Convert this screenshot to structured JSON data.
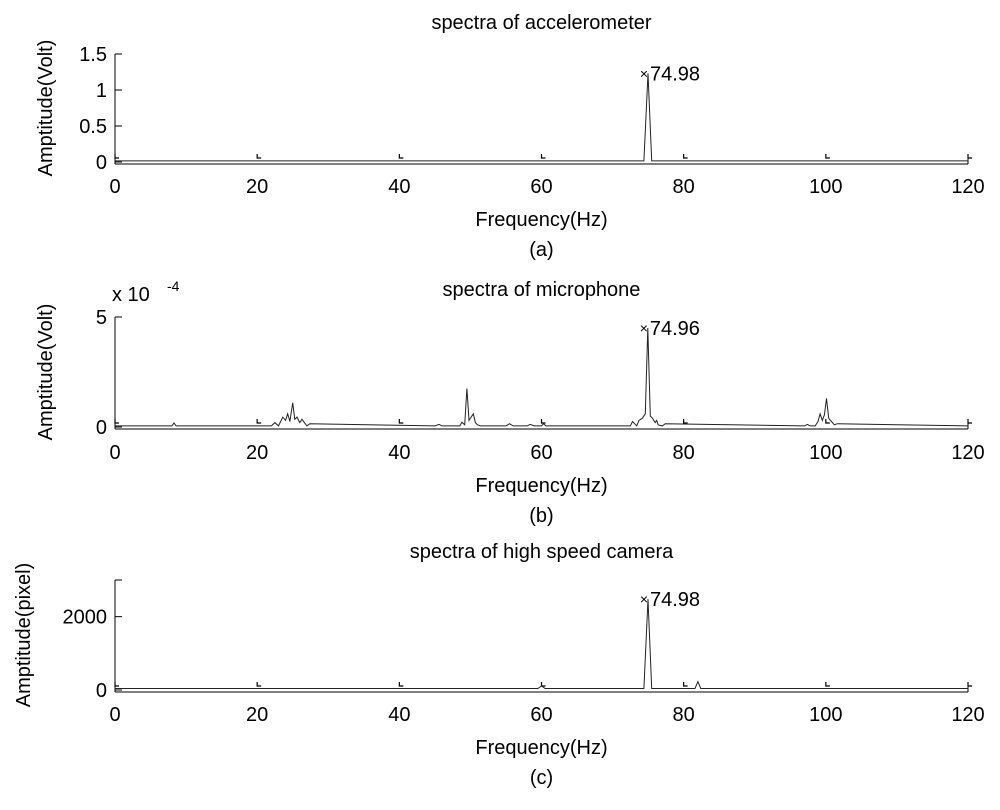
{
  "chart_data": [
    {
      "type": "line",
      "title": "spectra of accelerometer",
      "xlabel": "Frequency(Hz)",
      "ylabel": "Amptitude(Volt)",
      "caption": "(a)",
      "xlim": [
        0,
        120
      ],
      "ylim": [
        0,
        1.5
      ],
      "xticks": [
        0,
        20,
        40,
        60,
        80,
        100,
        120
      ],
      "yticks": [
        0,
        0.5,
        1,
        1.5
      ],
      "xtick_labels": [
        "0",
        "20",
        "40",
        "60",
        "80",
        "100",
        "120"
      ],
      "ytick_labels": [
        "0",
        "0.5",
        "1",
        "1.5"
      ],
      "exponent_label": "",
      "exponent_sup": "",
      "grid": false,
      "series": [
        {
          "x": [
            0,
            74.4,
            74.98,
            75.5,
            120
          ],
          "y": [
            0.015,
            0.015,
            1.23,
            0.015,
            0.015
          ]
        }
      ],
      "annotations": [
        {
          "x": 74.98,
          "y": 1.23,
          "marker": "×",
          "text": "74.98"
        }
      ]
    },
    {
      "type": "line",
      "title": "spectra of microphone",
      "xlabel": "Frequency(Hz)",
      "ylabel": "Amptitude(Volt)",
      "caption": "(b)",
      "xlim": [
        0,
        120
      ],
      "ylim": [
        0,
        5
      ],
      "xticks": [
        0,
        20,
        40,
        60,
        80,
        100,
        120
      ],
      "yticks": [
        0,
        5
      ],
      "xtick_labels": [
        "0",
        "20",
        "40",
        "60",
        "80",
        "100",
        "120"
      ],
      "ytick_labels": [
        "0",
        "5"
      ],
      "exponent_label": "x 10",
      "exponent_sup": "-4",
      "grid": false,
      "series": [
        {
          "x": [
            0,
            8,
            8.3,
            8.6,
            22,
            22.5,
            23,
            23.6,
            24,
            24.3,
            24.6,
            25,
            25.3,
            25.6,
            26,
            26.3,
            27,
            27.4,
            45,
            45.6,
            46,
            48.5,
            48.8,
            49.2,
            49.5,
            49.8,
            50.4,
            50.7,
            51,
            51.4,
            55,
            55.5,
            56,
            58,
            58.4,
            59,
            60,
            60.3,
            60.6,
            72.5,
            72.8,
            73.4,
            73.7,
            74.2,
            74.6,
            74.96,
            75.3,
            75.6,
            76,
            76.2,
            76.4,
            77,
            77.4,
            97,
            97.4,
            97.8,
            98.5,
            98.9,
            99.2,
            99.5,
            99.8,
            100.1,
            100.4,
            100.8,
            101.2,
            101.6,
            120
          ],
          "y": [
            0.05,
            0.05,
            0.18,
            0.05,
            0.05,
            0.2,
            0.05,
            0.45,
            0.3,
            0.6,
            0.25,
            1.1,
            0.35,
            0.45,
            0.2,
            0.35,
            0.05,
            0.15,
            0.05,
            0.12,
            0.05,
            0.05,
            0.22,
            0.1,
            1.75,
            0.3,
            0.6,
            0.2,
            0.1,
            0.05,
            0.05,
            0.15,
            0.05,
            0.05,
            0.12,
            0.05,
            0.05,
            0.15,
            0.05,
            0.05,
            0.25,
            0.05,
            0.3,
            0.4,
            0.6,
            4.5,
            0.5,
            0.4,
            0.2,
            0.3,
            0.1,
            0.05,
            0.15,
            0.05,
            0.12,
            0.05,
            0.05,
            0.25,
            0.6,
            0.3,
            0.55,
            1.3,
            0.4,
            0.25,
            0.1,
            0.15,
            0.05
          ]
        }
      ],
      "annotations": [
        {
          "x": 74.96,
          "y": 4.5,
          "marker": "×",
          "text": "74.96"
        }
      ]
    },
    {
      "type": "line",
      "title": "spectra of high speed camera",
      "xlabel": "Frequency(Hz)",
      "ylabel": "Amptitude(pixel)",
      "caption": "(c)",
      "xlim": [
        0,
        120
      ],
      "ylim": [
        0,
        3000
      ],
      "xticks": [
        0,
        20,
        40,
        60,
        80,
        100,
        120
      ],
      "yticks": [
        0,
        2000,
        3000
      ],
      "xtick_labels": [
        "0",
        "20",
        "40",
        "60",
        "80",
        "100",
        "120"
      ],
      "ytick_labels": [
        "0",
        "2000",
        ""
      ],
      "exponent_label": "",
      "exponent_sup": "",
      "grid": false,
      "series": [
        {
          "x": [
            0,
            59.5,
            60,
            60.5,
            74.4,
            74.98,
            75.5,
            81.6,
            82,
            82.4,
            120
          ],
          "y": [
            40,
            40,
            110,
            40,
            40,
            2480,
            40,
            40,
            230,
            40,
            40
          ]
        }
      ],
      "annotations": [
        {
          "x": 74.98,
          "y": 2480,
          "marker": "×",
          "text": "74.98"
        }
      ]
    }
  ]
}
